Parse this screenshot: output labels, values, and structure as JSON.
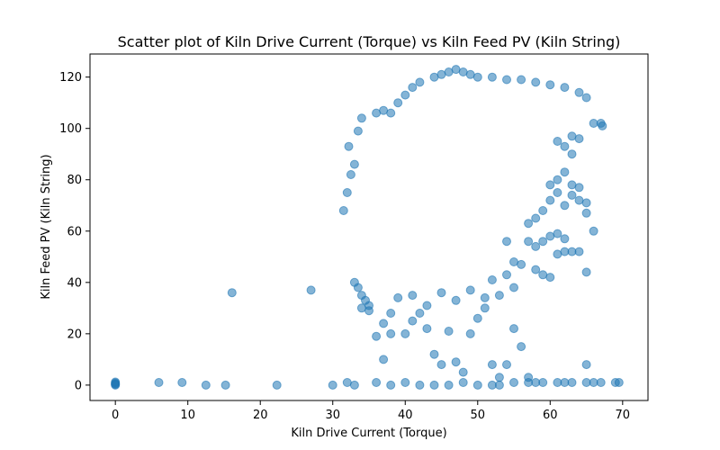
{
  "chart_data": {
    "type": "scatter",
    "title": "Scatter plot of Kiln Drive Current (Torque) vs Kiln Feed PV (Kiln String)",
    "xlabel": "Kiln Drive Current (Torque)",
    "ylabel": "Kiln Feed PV (Kiln String)",
    "xlim": [
      -3.5,
      73.5
    ],
    "ylim": [
      -6,
      129
    ],
    "xticks": [
      "0",
      "10",
      "20",
      "30",
      "40",
      "50",
      "60",
      "70"
    ],
    "yticks": [
      "0",
      "20",
      "40",
      "60",
      "80",
      "100",
      "120"
    ],
    "grid": false,
    "point_color": "#1f77b4",
    "point_alpha": 0.55,
    "series": [
      {
        "points": [
          [
            0,
            0.3
          ],
          [
            0,
            0.8
          ],
          [
            0,
            1.2
          ],
          [
            0,
            0.5
          ],
          [
            0,
            0
          ],
          [
            6,
            1
          ],
          [
            9.2,
            1
          ],
          [
            12.5,
            0
          ],
          [
            15.2,
            0
          ],
          [
            22.3,
            0
          ],
          [
            16.1,
            36
          ],
          [
            27,
            37
          ],
          [
            30,
            0
          ],
          [
            32,
            1
          ],
          [
            33,
            0
          ],
          [
            36,
            1
          ],
          [
            38,
            0
          ],
          [
            40,
            1
          ],
          [
            42,
            0
          ],
          [
            44,
            0
          ],
          [
            46,
            0
          ],
          [
            48,
            1
          ],
          [
            50,
            0
          ],
          [
            52,
            0
          ],
          [
            53,
            0
          ],
          [
            55,
            1
          ],
          [
            57,
            1
          ],
          [
            58,
            1
          ],
          [
            59,
            1
          ],
          [
            61,
            1
          ],
          [
            62,
            1
          ],
          [
            63,
            1
          ],
          [
            65,
            1
          ],
          [
            66,
            1
          ],
          [
            67,
            1
          ],
          [
            69,
            1
          ],
          [
            69.5,
            1
          ],
          [
            31.5,
            68
          ],
          [
            32,
            75
          ],
          [
            32.5,
            82
          ],
          [
            33,
            86
          ],
          [
            32.2,
            93
          ],
          [
            33.5,
            99
          ],
          [
            34,
            104
          ],
          [
            36,
            106
          ],
          [
            37,
            107
          ],
          [
            38,
            106
          ],
          [
            39,
            110
          ],
          [
            40,
            113
          ],
          [
            41,
            116
          ],
          [
            42,
            118
          ],
          [
            44,
            120
          ],
          [
            45,
            121
          ],
          [
            46,
            122
          ],
          [
            47,
            123
          ],
          [
            48,
            122
          ],
          [
            49,
            121
          ],
          [
            50,
            120
          ],
          [
            52,
            120
          ],
          [
            54,
            119
          ],
          [
            56,
            119
          ],
          [
            58,
            118
          ],
          [
            60,
            117
          ],
          [
            62,
            116
          ],
          [
            64,
            114
          ],
          [
            65,
            112
          ],
          [
            66,
            102
          ],
          [
            67,
            102
          ],
          [
            67.2,
            101
          ],
          [
            33,
            40
          ],
          [
            33.5,
            38
          ],
          [
            34,
            35
          ],
          [
            34.5,
            33
          ],
          [
            35,
            31
          ],
          [
            34,
            30
          ],
          [
            35,
            29
          ],
          [
            36,
            19
          ],
          [
            37,
            24
          ],
          [
            38,
            20
          ],
          [
            38,
            28
          ],
          [
            40,
            20
          ],
          [
            41,
            25
          ],
          [
            42,
            28
          ],
          [
            43,
            22
          ],
          [
            44,
            12
          ],
          [
            45,
            8
          ],
          [
            46,
            21
          ],
          [
            47,
            9
          ],
          [
            48,
            5
          ],
          [
            49,
            20
          ],
          [
            50,
            26
          ],
          [
            51,
            30
          ],
          [
            52,
            8
          ],
          [
            53,
            3
          ],
          [
            54,
            8
          ],
          [
            55,
            22
          ],
          [
            37,
            10
          ],
          [
            39,
            34
          ],
          [
            41,
            35
          ],
          [
            43,
            31
          ],
          [
            45,
            36
          ],
          [
            47,
            33
          ],
          [
            49,
            37
          ],
          [
            51,
            34
          ],
          [
            53,
            35
          ],
          [
            55,
            38
          ],
          [
            54,
            43
          ],
          [
            55,
            48
          ],
          [
            56,
            15
          ],
          [
            57,
            3
          ],
          [
            56,
            47
          ],
          [
            58,
            45
          ],
          [
            59,
            43
          ],
          [
            60,
            42
          ],
          [
            61,
            51
          ],
          [
            62,
            52
          ],
          [
            63,
            52
          ],
          [
            64,
            52
          ],
          [
            65,
            44
          ],
          [
            65,
            8
          ],
          [
            66,
            60
          ],
          [
            57,
            56
          ],
          [
            58,
            54
          ],
          [
            59,
            56
          ],
          [
            60,
            58
          ],
          [
            61,
            59
          ],
          [
            62,
            57
          ],
          [
            58,
            65
          ],
          [
            59,
            68
          ],
          [
            60,
            72
          ],
          [
            61,
            75
          ],
          [
            62,
            70
          ],
          [
            63,
            74
          ],
          [
            64,
            72
          ],
          [
            65,
            71
          ],
          [
            65,
            67
          ],
          [
            60,
            78
          ],
          [
            61,
            80
          ],
          [
            62,
            83
          ],
          [
            63,
            78
          ],
          [
            64,
            77
          ],
          [
            61,
            95
          ],
          [
            62,
            93
          ],
          [
            63,
            90
          ],
          [
            63,
            97
          ],
          [
            64,
            96
          ],
          [
            52,
            41
          ],
          [
            54,
            56
          ],
          [
            57,
            63
          ]
        ]
      }
    ]
  }
}
